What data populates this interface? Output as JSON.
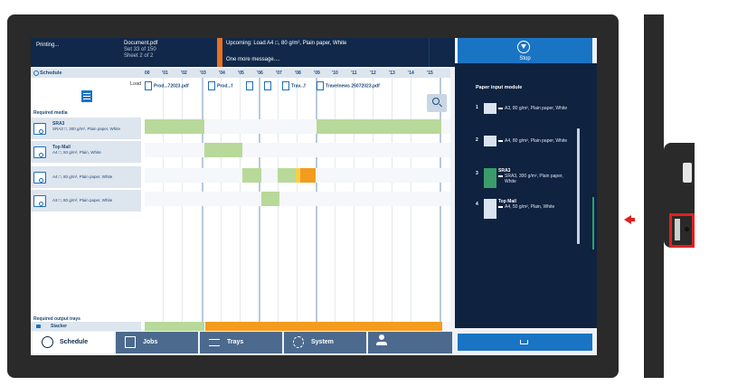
{
  "header": {
    "status": "Printing...",
    "document_name": "Document.pdf",
    "set_info": "Set 33 of 150",
    "sheet_info": "Sheet 2 of 2",
    "upcoming": "Upcoming: Load A4 □, 80 g/m², Plain paper, White",
    "more": "One more message...."
  },
  "stop_button": {
    "label": "Stop"
  },
  "right_panel": {
    "title": "Paper input module",
    "trays": [
      {
        "number": "1",
        "name": "",
        "spec": "A3, 80 g/m², Plain paper, White",
        "spec2": ""
      },
      {
        "number": "2",
        "name": "",
        "spec": "A4, 80 g/m², Plain paper, White",
        "spec2": ""
      },
      {
        "number": "3",
        "name": "SRA3",
        "spec": "SRA3, 300 g/m², Plain paper,",
        "spec2": "White"
      },
      {
        "number": "4",
        "name": "Top Mail",
        "spec": "A4, 50 g/m², Plain, White",
        "spec2": ""
      }
    ]
  },
  "schedule": {
    "title": "Schedule",
    "ticks": [
      "00",
      "'01",
      "'02",
      "'03",
      "'04",
      "'05",
      "'06",
      "'07",
      "'08",
      "'09",
      "'10",
      "'11",
      "'12",
      "'13",
      "'14",
      "'15"
    ],
    "load_label": "Load",
    "jobs": [
      "Prod...72023.pdf",
      "Prod...f",
      "",
      "",
      "Trav...f",
      "Travelnews 25072023.pdf"
    ],
    "required_media_label": "Required media",
    "media": [
      {
        "name": "SRA3",
        "spec": "SRA3 □, 300 g/m², Plain paper, White"
      },
      {
        "name": "Top Mail",
        "spec": "A4 □, 50 g/m², Plain, White"
      },
      {
        "name": "",
        "spec": "A4 □, 80 g/m², Plain paper, White"
      },
      {
        "name": "",
        "spec": "A3 □, 80 g/m², Plain paper, White"
      }
    ],
    "required_output_label": "Required output trays",
    "output_tray": "Stacker"
  },
  "tabs": [
    {
      "label": "Schedule",
      "icon": "clock-icon",
      "active": true
    },
    {
      "label": "Jobs",
      "icon": "jobs-icon",
      "active": false
    },
    {
      "label": "Trays",
      "icon": "trays-icon",
      "active": false
    },
    {
      "label": "System",
      "icon": "gear-icon",
      "active": false
    },
    {
      "label": "",
      "icon": "user-icon",
      "active": false
    }
  ],
  "colors": {
    "header_bg": "#11284a",
    "accent_blue": "#1a74c4",
    "orange": "#f39c1e",
    "green_bar": "#b8d99a",
    "highlight_red": "#e02020"
  }
}
